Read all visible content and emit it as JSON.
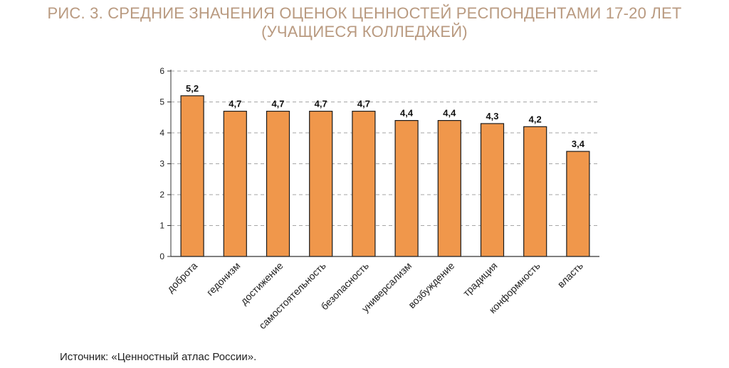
{
  "colors": {
    "title": "#b99a80",
    "bar": "#f0974b",
    "bar_stroke": "#1a1a1a",
    "grid": "#a6a6a6"
  },
  "figure": {
    "title_line1": "РИС. 3. СРЕДНИЕ ЗНАЧЕНИЯ ОЦЕНОК ЦЕННОСТЕЙ РЕСПОНДЕНТАМИ 17-20 ЛЕТ",
    "title_line2": "(УЧАЩИЕСЯ КОЛЛЕДЖЕЙ)",
    "source": "Источник: «Ценностный атлас России»."
  },
  "chart_data": {
    "type": "bar",
    "categories": [
      "доброта",
      "гедонизм",
      "достижение",
      "самостоятельность",
      "безопасность",
      "универсализм",
      "возбуждение",
      "традиция",
      "конформность",
      "власть"
    ],
    "values": [
      5.2,
      4.7,
      4.7,
      4.7,
      4.7,
      4.4,
      4.4,
      4.3,
      4.2,
      3.4
    ],
    "value_labels": [
      "5,2",
      "4,7",
      "4,7",
      "4,7",
      "4,7",
      "4,4",
      "4,4",
      "4,3",
      "4,2",
      "3,4"
    ],
    "ylim": [
      0,
      6
    ],
    "yticks": [
      "0",
      "1",
      "2",
      "3",
      "4",
      "5",
      "6"
    ],
    "grid": true,
    "grid_style": "dashed"
  }
}
